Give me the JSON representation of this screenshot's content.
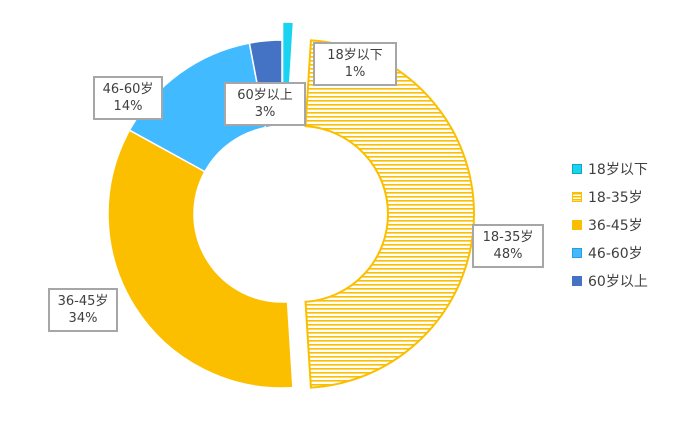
{
  "chart_data": {
    "type": "doughnut",
    "title": "",
    "slices": [
      {
        "label": "18岁以下",
        "value": 1,
        "percent_label": "1%",
        "color": "#19d3f0",
        "pattern": "solid",
        "exploded": true
      },
      {
        "label": "18-35岁",
        "value": 48,
        "percent_label": "48%",
        "color": "#fbbf00",
        "pattern": "horizontal-stripes",
        "exploded": true
      },
      {
        "label": "36-45岁",
        "value": 34,
        "percent_label": "34%",
        "color": "#fbbf00",
        "pattern": "solid",
        "exploded": false
      },
      {
        "label": "46-60岁",
        "value": 14,
        "percent_label": "14%",
        "color": "#41baff",
        "pattern": "solid",
        "exploded": false
      },
      {
        "label": "60岁以上",
        "value": 3,
        "percent_label": "3%",
        "color": "#4472c4",
        "pattern": "solid",
        "exploded": false
      }
    ],
    "legend_position": "right"
  }
}
